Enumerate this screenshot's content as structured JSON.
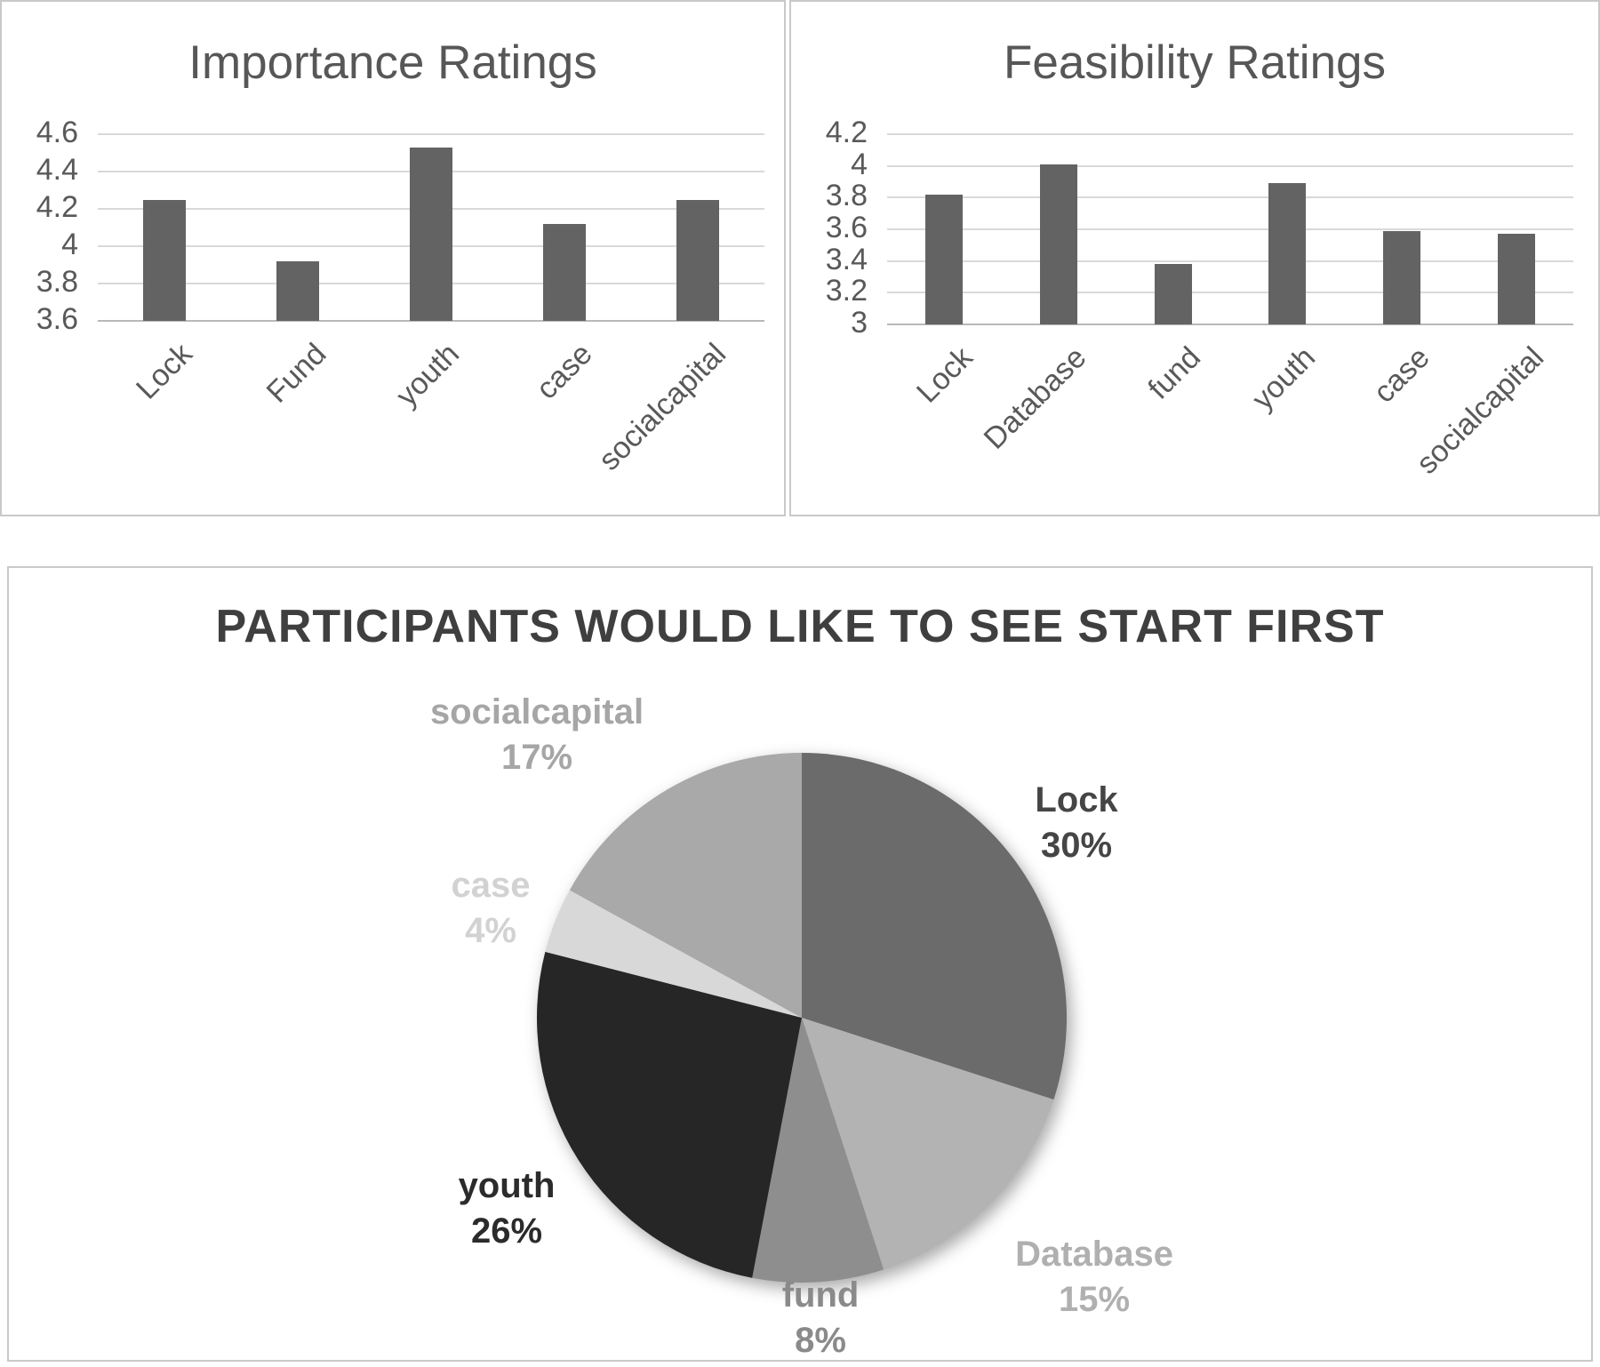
{
  "page": {
    "background": "#ffffff"
  },
  "colors": {
    "panel_border": "#c9c9c9",
    "bar_fill": "#636363",
    "gridline": "#d9d9d9",
    "axis_line": "#b9b9b9",
    "tick_text": "#595959",
    "bar_title_text": "#575757",
    "pie_title_text": "#3f3f3f"
  },
  "chart_data": [
    {
      "id": "importance",
      "type": "bar",
      "title": "Importance Ratings",
      "categories": [
        "Lock",
        "Fund",
        "youth",
        "case",
        "socialcapital"
      ],
      "values": [
        4.25,
        3.92,
        4.53,
        4.12,
        4.25
      ],
      "ylim": [
        3.6,
        4.6
      ],
      "ytick_labels": [
        "4.6",
        "4.4",
        "4.2",
        "4",
        "3.8",
        "3.6"
      ],
      "grid": true,
      "legend": false,
      "xlabel": "",
      "ylabel": ""
    },
    {
      "id": "feasibility",
      "type": "bar",
      "title": "Feasibility Ratings",
      "categories": [
        "Lock",
        "Database",
        "fund",
        "youth",
        "case",
        "socialcapital"
      ],
      "values": [
        3.82,
        4.01,
        3.38,
        3.89,
        3.59,
        3.57
      ],
      "ylim": [
        3.0,
        4.2
      ],
      "ytick_labels": [
        "4.2",
        "4",
        "3.8",
        "3.6",
        "3.4",
        "3.2",
        "3"
      ],
      "grid": true,
      "legend": false,
      "xlabel": "",
      "ylabel": ""
    },
    {
      "id": "start-first",
      "type": "pie",
      "title": "PARTICIPANTS WOULD LIKE TO SEE START FIRST",
      "start_angle_deg": 0,
      "direction": "clockwise",
      "slices": [
        {
          "label": "Lock",
          "value_pct": 30,
          "pct_label": "30%",
          "color": "#6b6b6b",
          "label_color": "#454545"
        },
        {
          "label": "Database",
          "value_pct": 15,
          "pct_label": "15%",
          "color": "#b3b3b3",
          "label_color": "#b0b0b0"
        },
        {
          "label": "fund",
          "value_pct": 8,
          "pct_label": "8%",
          "color": "#8e8e8e",
          "label_color": "#8a8a8a"
        },
        {
          "label": "youth",
          "value_pct": 26,
          "pct_label": "26%",
          "color": "#262626",
          "label_color": "#2b2b2b"
        },
        {
          "label": "case",
          "value_pct": 4,
          "pct_label": "4%",
          "color": "#d8d8d8",
          "label_color": "#d2d2d2"
        },
        {
          "label": "socialcapital",
          "value_pct": 17,
          "pct_label": "17%",
          "color": "#a9a9a9",
          "label_color": "#a6a6a6"
        }
      ]
    }
  ]
}
